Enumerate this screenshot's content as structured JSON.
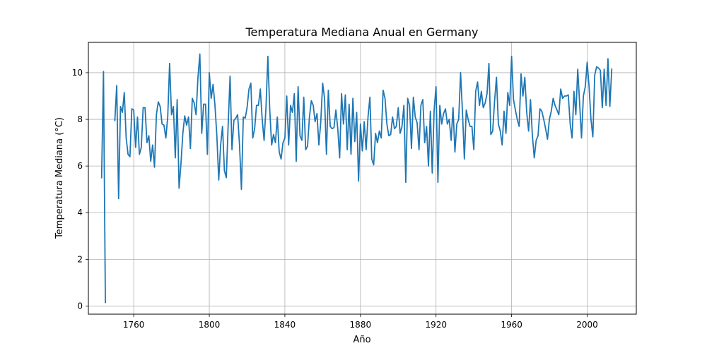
{
  "chart_data": {
    "type": "line",
    "title": "Temperatura Mediana Anual en Germany",
    "xlabel": "Año",
    "ylabel": "Temperatura Mediana (°C)",
    "xlim": [
      1736,
      2026
    ],
    "ylim": [
      -0.35,
      11.3
    ],
    "xticks": [
      1760,
      1800,
      1840,
      1880,
      1920,
      1960,
      2000
    ],
    "yticks": [
      0,
      2,
      4,
      6,
      8,
      10
    ],
    "grid": true,
    "legend": "none",
    "series": [
      {
        "color": "#1f77b4",
        "points": [
          [
            1743,
            5.5
          ],
          [
            1744,
            10.05
          ],
          [
            1745,
            0.15
          ],
          [
            null,
            null
          ],
          [
            1750,
            7.95
          ],
          [
            1751,
            9.45
          ],
          [
            1752,
            4.6
          ],
          [
            1753,
            8.55
          ],
          [
            1754,
            8.3
          ],
          [
            1755,
            9.15
          ],
          [
            1756,
            7.2
          ],
          [
            1757,
            6.5
          ],
          [
            1758,
            6.4
          ],
          [
            1759,
            8.45
          ],
          [
            1760,
            8.4
          ],
          [
            1761,
            6.8
          ],
          [
            1762,
            8.1
          ],
          [
            1763,
            6.5
          ],
          [
            1764,
            6.8
          ],
          [
            1765,
            8.5
          ],
          [
            1766,
            8.5
          ],
          [
            1767,
            7.0
          ],
          [
            1768,
            7.3
          ],
          [
            1769,
            6.2
          ],
          [
            1770,
            6.9
          ],
          [
            1771,
            5.95
          ],
          [
            1772,
            8.2
          ],
          [
            1773,
            8.75
          ],
          [
            1774,
            8.55
          ],
          [
            1775,
            7.8
          ],
          [
            1776,
            7.75
          ],
          [
            1777,
            7.2
          ],
          [
            1778,
            8.1
          ],
          [
            1779,
            10.4
          ],
          [
            1780,
            8.2
          ],
          [
            1781,
            8.55
          ],
          [
            1782,
            6.35
          ],
          [
            1783,
            8.85
          ],
          [
            1784,
            5.05
          ],
          [
            1785,
            6.1
          ],
          [
            1786,
            7.4
          ],
          [
            1787,
            8.15
          ],
          [
            1788,
            7.75
          ],
          [
            1789,
            8.1
          ],
          [
            1790,
            6.75
          ],
          [
            1791,
            8.9
          ],
          [
            1792,
            8.7
          ],
          [
            1793,
            8.2
          ],
          [
            1794,
            9.8
          ],
          [
            1795,
            10.8
          ],
          [
            1796,
            7.4
          ],
          [
            1797,
            8.65
          ],
          [
            1798,
            8.65
          ],
          [
            1799,
            6.5
          ],
          [
            1800,
            10.0
          ],
          [
            1801,
            8.9
          ],
          [
            1802,
            9.5
          ],
          [
            1803,
            8.6
          ],
          [
            1804,
            7.3
          ],
          [
            1805,
            5.4
          ],
          [
            1806,
            6.9
          ],
          [
            1807,
            7.7
          ],
          [
            1808,
            5.8
          ],
          [
            1809,
            5.5
          ],
          [
            1810,
            7.8
          ],
          [
            1811,
            9.85
          ],
          [
            1812,
            6.7
          ],
          [
            1813,
            7.95
          ],
          [
            1814,
            8.05
          ],
          [
            1815,
            8.2
          ],
          [
            1816,
            6.9
          ],
          [
            1817,
            5.0
          ],
          [
            1818,
            8.1
          ],
          [
            1819,
            8.05
          ],
          [
            1820,
            8.5
          ],
          [
            1821,
            9.3
          ],
          [
            1822,
            9.55
          ],
          [
            1823,
            7.2
          ],
          [
            1824,
            7.6
          ],
          [
            1825,
            8.6
          ],
          [
            1826,
            8.6
          ],
          [
            1827,
            9.3
          ],
          [
            1828,
            8.0
          ],
          [
            1829,
            7.1
          ],
          [
            1830,
            8.5
          ],
          [
            1831,
            10.7
          ],
          [
            1832,
            8.4
          ],
          [
            1833,
            6.9
          ],
          [
            1834,
            7.35
          ],
          [
            1835,
            7.0
          ],
          [
            1836,
            8.1
          ],
          [
            1837,
            6.6
          ],
          [
            1838,
            6.3
          ],
          [
            1839,
            7.0
          ],
          [
            1840,
            7.2
          ],
          [
            1841,
            9.0
          ],
          [
            1842,
            6.9
          ],
          [
            1843,
            8.6
          ],
          [
            1844,
            8.3
          ],
          [
            1845,
            9.1
          ],
          [
            1846,
            6.2
          ],
          [
            1847,
            9.4
          ],
          [
            1848,
            7.3
          ],
          [
            1849,
            7.1
          ],
          [
            1850,
            8.95
          ],
          [
            1851,
            6.7
          ],
          [
            1852,
            6.85
          ],
          [
            1853,
            8.1
          ],
          [
            1854,
            8.8
          ],
          [
            1855,
            8.6
          ],
          [
            1856,
            7.9
          ],
          [
            1857,
            8.25
          ],
          [
            1858,
            6.9
          ],
          [
            1859,
            7.9
          ],
          [
            1860,
            9.55
          ],
          [
            1861,
            8.9
          ],
          [
            1862,
            6.5
          ],
          [
            1863,
            9.25
          ],
          [
            1864,
            7.7
          ],
          [
            1865,
            7.6
          ],
          [
            1866,
            7.65
          ],
          [
            1867,
            8.4
          ],
          [
            1868,
            7.6
          ],
          [
            1869,
            6.35
          ],
          [
            1870,
            9.1
          ],
          [
            1871,
            7.8
          ],
          [
            1872,
            9.05
          ],
          [
            1873,
            6.7
          ],
          [
            1874,
            8.65
          ],
          [
            1875,
            6.5
          ],
          [
            1876,
            8.9
          ],
          [
            1877,
            7.05
          ],
          [
            1878,
            8.3
          ],
          [
            1879,
            5.35
          ],
          [
            1880,
            7.8
          ],
          [
            1881,
            6.65
          ],
          [
            1882,
            7.9
          ],
          [
            1883,
            6.7
          ],
          [
            1884,
            8.1
          ],
          [
            1885,
            8.95
          ],
          [
            1886,
            6.3
          ],
          [
            1887,
            6.05
          ],
          [
            1888,
            7.4
          ],
          [
            1889,
            7.0
          ],
          [
            1890,
            7.5
          ],
          [
            1891,
            7.2
          ],
          [
            1892,
            9.25
          ],
          [
            1893,
            8.9
          ],
          [
            1894,
            7.8
          ],
          [
            1895,
            7.3
          ],
          [
            1896,
            7.35
          ],
          [
            1897,
            8.1
          ],
          [
            1898,
            7.6
          ],
          [
            1899,
            7.7
          ],
          [
            1900,
            8.5
          ],
          [
            1901,
            7.4
          ],
          [
            1902,
            7.7
          ],
          [
            1903,
            8.6
          ],
          [
            1904,
            5.3
          ],
          [
            1905,
            8.9
          ],
          [
            1906,
            8.6
          ],
          [
            1907,
            6.75
          ],
          [
            1908,
            8.95
          ],
          [
            1909,
            8.1
          ],
          [
            1910,
            7.85
          ],
          [
            1911,
            6.7
          ],
          [
            1912,
            8.6
          ],
          [
            1913,
            8.85
          ],
          [
            1914,
            7.0
          ],
          [
            1915,
            7.7
          ],
          [
            1916,
            6.0
          ],
          [
            1917,
            8.35
          ],
          [
            1918,
            5.7
          ],
          [
            1919,
            8.4
          ],
          [
            1920,
            9.4
          ],
          [
            1921,
            5.3
          ],
          [
            1922,
            8.6
          ],
          [
            1923,
            7.8
          ],
          [
            1924,
            8.25
          ],
          [
            1925,
            8.45
          ],
          [
            1926,
            7.8
          ],
          [
            1927,
            8.0
          ],
          [
            1928,
            7.1
          ],
          [
            1929,
            8.5
          ],
          [
            1930,
            6.6
          ],
          [
            1931,
            7.8
          ],
          [
            1932,
            8.0
          ],
          [
            1933,
            10.0
          ],
          [
            1934,
            8.3
          ],
          [
            1935,
            6.3
          ],
          [
            1936,
            8.4
          ],
          [
            1937,
            8.0
          ],
          [
            1938,
            7.7
          ],
          [
            1939,
            7.7
          ],
          [
            1940,
            6.7
          ],
          [
            1941,
            9.2
          ],
          [
            1942,
            9.6
          ],
          [
            1943,
            8.6
          ],
          [
            1944,
            9.2
          ],
          [
            1945,
            8.5
          ],
          [
            1946,
            8.7
          ],
          [
            1947,
            9.1
          ],
          [
            1948,
            10.4
          ],
          [
            1949,
            7.35
          ],
          [
            1950,
            7.5
          ],
          [
            1951,
            8.8
          ],
          [
            1952,
            9.8
          ],
          [
            1953,
            7.8
          ],
          [
            1954,
            7.5
          ],
          [
            1955,
            6.9
          ],
          [
            1956,
            8.35
          ],
          [
            1957,
            7.4
          ],
          [
            1958,
            9.15
          ],
          [
            1959,
            8.6
          ],
          [
            1960,
            10.7
          ],
          [
            1961,
            8.85
          ],
          [
            1962,
            8.4
          ],
          [
            1963,
            8.0
          ],
          [
            1964,
            7.7
          ],
          [
            1965,
            9.95
          ],
          [
            1966,
            9.0
          ],
          [
            1967,
            9.8
          ],
          [
            1968,
            8.3
          ],
          [
            1969,
            7.5
          ],
          [
            1970,
            8.85
          ],
          [
            1971,
            7.3
          ],
          [
            1972,
            6.35
          ],
          [
            1973,
            7.1
          ],
          [
            1974,
            7.3
          ],
          [
            1975,
            8.45
          ],
          [
            1976,
            8.35
          ],
          [
            1977,
            8.0
          ],
          [
            1978,
            7.6
          ],
          [
            1979,
            7.15
          ],
          [
            1980,
            8.0
          ],
          [
            1981,
            8.35
          ],
          [
            1982,
            8.9
          ],
          [
            1983,
            8.6
          ],
          [
            1984,
            8.4
          ],
          [
            1985,
            8.2
          ],
          [
            1986,
            9.3
          ],
          [
            1987,
            8.9
          ],
          [
            1988,
            9.0
          ],
          [
            1989,
            9.0
          ],
          [
            1990,
            9.05
          ],
          [
            1991,
            7.8
          ],
          [
            1992,
            7.2
          ],
          [
            1993,
            9.2
          ],
          [
            1994,
            8.2
          ],
          [
            1995,
            10.15
          ],
          [
            1996,
            8.7
          ],
          [
            1997,
            7.2
          ],
          [
            1998,
            9.0
          ],
          [
            1999,
            9.4
          ],
          [
            2000,
            10.45
          ],
          [
            2001,
            9.4
          ],
          [
            2002,
            8.0
          ],
          [
            2003,
            7.25
          ],
          [
            2004,
            9.9
          ],
          [
            2005,
            10.25
          ],
          [
            2006,
            10.2
          ],
          [
            2007,
            10.1
          ],
          [
            2008,
            8.5
          ],
          [
            2009,
            10.15
          ],
          [
            2010,
            8.6
          ],
          [
            2011,
            10.6
          ],
          [
            2012,
            8.55
          ],
          [
            2013,
            10.15
          ]
        ]
      }
    ]
  }
}
